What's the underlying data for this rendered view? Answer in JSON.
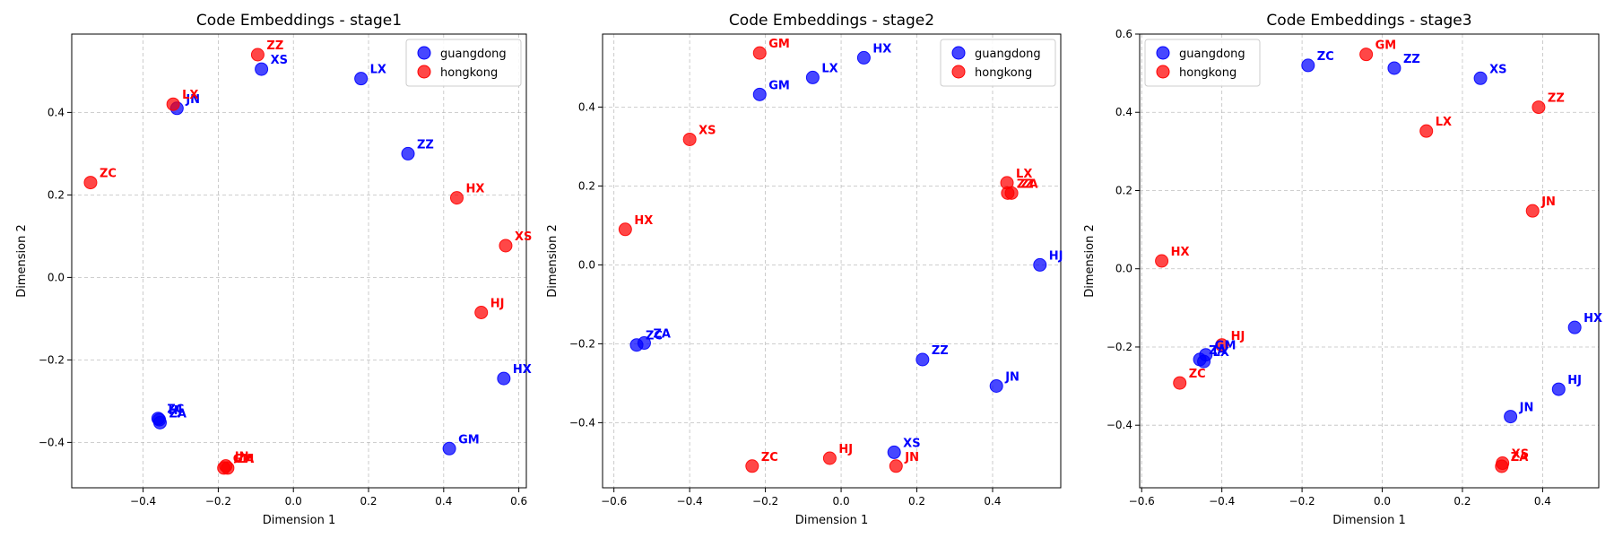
{
  "colors": {
    "guangdong": "#0000ff",
    "hongkong": "#ff0000",
    "grid": "#b0b0b0"
  },
  "chart_data": [
    {
      "type": "scatter",
      "title": "Code Embeddings - stage1",
      "xlabel": "Dimension 1",
      "ylabel": "Dimension 2",
      "xlim": [
        -0.59,
        0.62
      ],
      "ylim": [
        -0.51,
        0.59
      ],
      "xticks": [
        -0.4,
        -0.2,
        0.0,
        0.2,
        0.4,
        0.6
      ],
      "xtick_labels": [
        "−0.4",
        "−0.2",
        "0.0",
        "0.2",
        "0.4",
        "0.6"
      ],
      "yticks": [
        -0.4,
        -0.2,
        0.0,
        0.2,
        0.4
      ],
      "ytick_labels": [
        "−0.4",
        "−0.2",
        "0.0",
        "0.2",
        "0.4"
      ],
      "grid": true,
      "legend_position": "top-right",
      "series": [
        {
          "name": "guangdong",
          "color": "#0000ff",
          "points": [
            {
              "label": "XS",
              "x": -0.085,
              "y": 0.505
            },
            {
              "label": "LX",
              "x": 0.18,
              "y": 0.482
            },
            {
              "label": "JN",
              "x": -0.31,
              "y": 0.41
            },
            {
              "label": "ZZ",
              "x": 0.305,
              "y": 0.3
            },
            {
              "label": "HX",
              "x": 0.56,
              "y": -0.245
            },
            {
              "label": "GM",
              "x": 0.415,
              "y": -0.415
            },
            {
              "label": "ZC",
              "x": -0.36,
              "y": -0.342
            },
            {
              "label": "HJ",
              "x": -0.357,
              "y": -0.345
            },
            {
              "label": "ZA",
              "x": -0.355,
              "y": -0.352
            }
          ]
        },
        {
          "name": "hongkong",
          "color": "#ff0000",
          "points": [
            {
              "label": "ZZ",
              "x": -0.095,
              "y": 0.54
            },
            {
              "label": "LX",
              "x": -0.32,
              "y": 0.42
            },
            {
              "label": "ZC",
              "x": -0.54,
              "y": 0.23
            },
            {
              "label": "HX",
              "x": 0.435,
              "y": 0.193
            },
            {
              "label": "XS",
              "x": 0.565,
              "y": 0.077
            },
            {
              "label": "HJ",
              "x": 0.5,
              "y": -0.085
            },
            {
              "label": "JN",
              "x": -0.18,
              "y": -0.457
            },
            {
              "label": "GM",
              "x": -0.185,
              "y": -0.462
            },
            {
              "label": "ZA",
              "x": -0.175,
              "y": -0.462
            }
          ]
        }
      ]
    },
    {
      "type": "scatter",
      "title": "Code Embeddings - stage2",
      "xlabel": "Dimension 1",
      "ylabel": "Dimension 2",
      "xlim": [
        -0.63,
        0.58
      ],
      "ylim": [
        -0.565,
        0.585
      ],
      "xticks": [
        -0.6,
        -0.4,
        -0.2,
        0.0,
        0.2,
        0.4
      ],
      "xtick_labels": [
        "−0.6",
        "−0.4",
        "−0.2",
        "0.0",
        "0.2",
        "0.4"
      ],
      "yticks": [
        -0.4,
        -0.2,
        0.0,
        0.2,
        0.4
      ],
      "ytick_labels": [
        "−0.4",
        "−0.2",
        "0.0",
        "0.2",
        "0.4"
      ],
      "grid": true,
      "legend_position": "top-right",
      "series": [
        {
          "name": "guangdong",
          "color": "#0000ff",
          "points": [
            {
              "label": "HX",
              "x": 0.06,
              "y": 0.525
            },
            {
              "label": "LX",
              "x": -0.075,
              "y": 0.475
            },
            {
              "label": "GM",
              "x": -0.215,
              "y": 0.432
            },
            {
              "label": "HJ",
              "x": 0.525,
              "y": 0.0
            },
            {
              "label": "ZZ",
              "x": 0.215,
              "y": -0.24
            },
            {
              "label": "JN",
              "x": 0.41,
              "y": -0.307
            },
            {
              "label": "ZC",
              "x": -0.54,
              "y": -0.203
            },
            {
              "label": "ZA",
              "x": -0.52,
              "y": -0.198
            },
            {
              "label": "XS",
              "x": 0.14,
              "y": -0.475
            }
          ]
        },
        {
          "name": "hongkong",
          "color": "#ff0000",
          "points": [
            {
              "label": "GM",
              "x": -0.215,
              "y": 0.537
            },
            {
              "label": "XS",
              "x": -0.4,
              "y": 0.318
            },
            {
              "label": "LX",
              "x": 0.438,
              "y": 0.208
            },
            {
              "label": "ZZ",
              "x": 0.44,
              "y": 0.182
            },
            {
              "label": "ZA",
              "x": 0.45,
              "y": 0.182
            },
            {
              "label": "HX",
              "x": -0.57,
              "y": 0.09
            },
            {
              "label": "ZC",
              "x": -0.235,
              "y": -0.51
            },
            {
              "label": "HJ",
              "x": -0.03,
              "y": -0.49
            },
            {
              "label": "JN",
              "x": 0.145,
              "y": -0.51
            }
          ]
        }
      ]
    },
    {
      "type": "scatter",
      "title": "Code Embeddings - stage3",
      "xlabel": "Dimension 1",
      "ylabel": "Dimension 2",
      "xlim": [
        -0.605,
        0.54
      ],
      "ylim": [
        -0.56,
        0.6
      ],
      "xticks": [
        -0.6,
        -0.4,
        -0.2,
        0.0,
        0.2,
        0.4
      ],
      "xtick_labels": [
        "−0.6",
        "−0.4",
        "−0.2",
        "0.0",
        "0.2",
        "0.4"
      ],
      "yticks": [
        -0.4,
        -0.2,
        0.0,
        0.2,
        0.4,
        0.6
      ],
      "ytick_labels": [
        "−0.4",
        "−0.2",
        "0.0",
        "0.2",
        "0.4",
        "0.6"
      ],
      "grid": true,
      "legend_position": "top-left",
      "series": [
        {
          "name": "guangdong",
          "color": "#0000ff",
          "points": [
            {
              "label": "ZC",
              "x": -0.185,
              "y": 0.52
            },
            {
              "label": "ZZ",
              "x": 0.03,
              "y": 0.513
            },
            {
              "label": "XS",
              "x": 0.245,
              "y": 0.487
            },
            {
              "label": "HX",
              "x": 0.48,
              "y": -0.15
            },
            {
              "label": "HJ",
              "x": 0.44,
              "y": -0.308
            },
            {
              "label": "JN",
              "x": 0.32,
              "y": -0.378
            },
            {
              "label": "GM",
              "x": -0.44,
              "y": -0.22
            },
            {
              "label": "ZA",
              "x": -0.455,
              "y": -0.232
            },
            {
              "label": "LX",
              "x": -0.445,
              "y": -0.237
            }
          ]
        },
        {
          "name": "hongkong",
          "color": "#ff0000",
          "points": [
            {
              "label": "GM",
              "x": -0.04,
              "y": 0.548
            },
            {
              "label": "ZZ",
              "x": 0.39,
              "y": 0.413
            },
            {
              "label": "LX",
              "x": 0.11,
              "y": 0.352
            },
            {
              "label": "JN",
              "x": 0.375,
              "y": 0.148
            },
            {
              "label": "HX",
              "x": -0.55,
              "y": 0.02
            },
            {
              "label": "HJ",
              "x": -0.4,
              "y": -0.195
            },
            {
              "label": "ZC",
              "x": -0.505,
              "y": -0.292
            },
            {
              "label": "XS",
              "x": 0.3,
              "y": -0.497
            },
            {
              "label": "ZA",
              "x": 0.298,
              "y": -0.505
            }
          ]
        }
      ]
    }
  ]
}
